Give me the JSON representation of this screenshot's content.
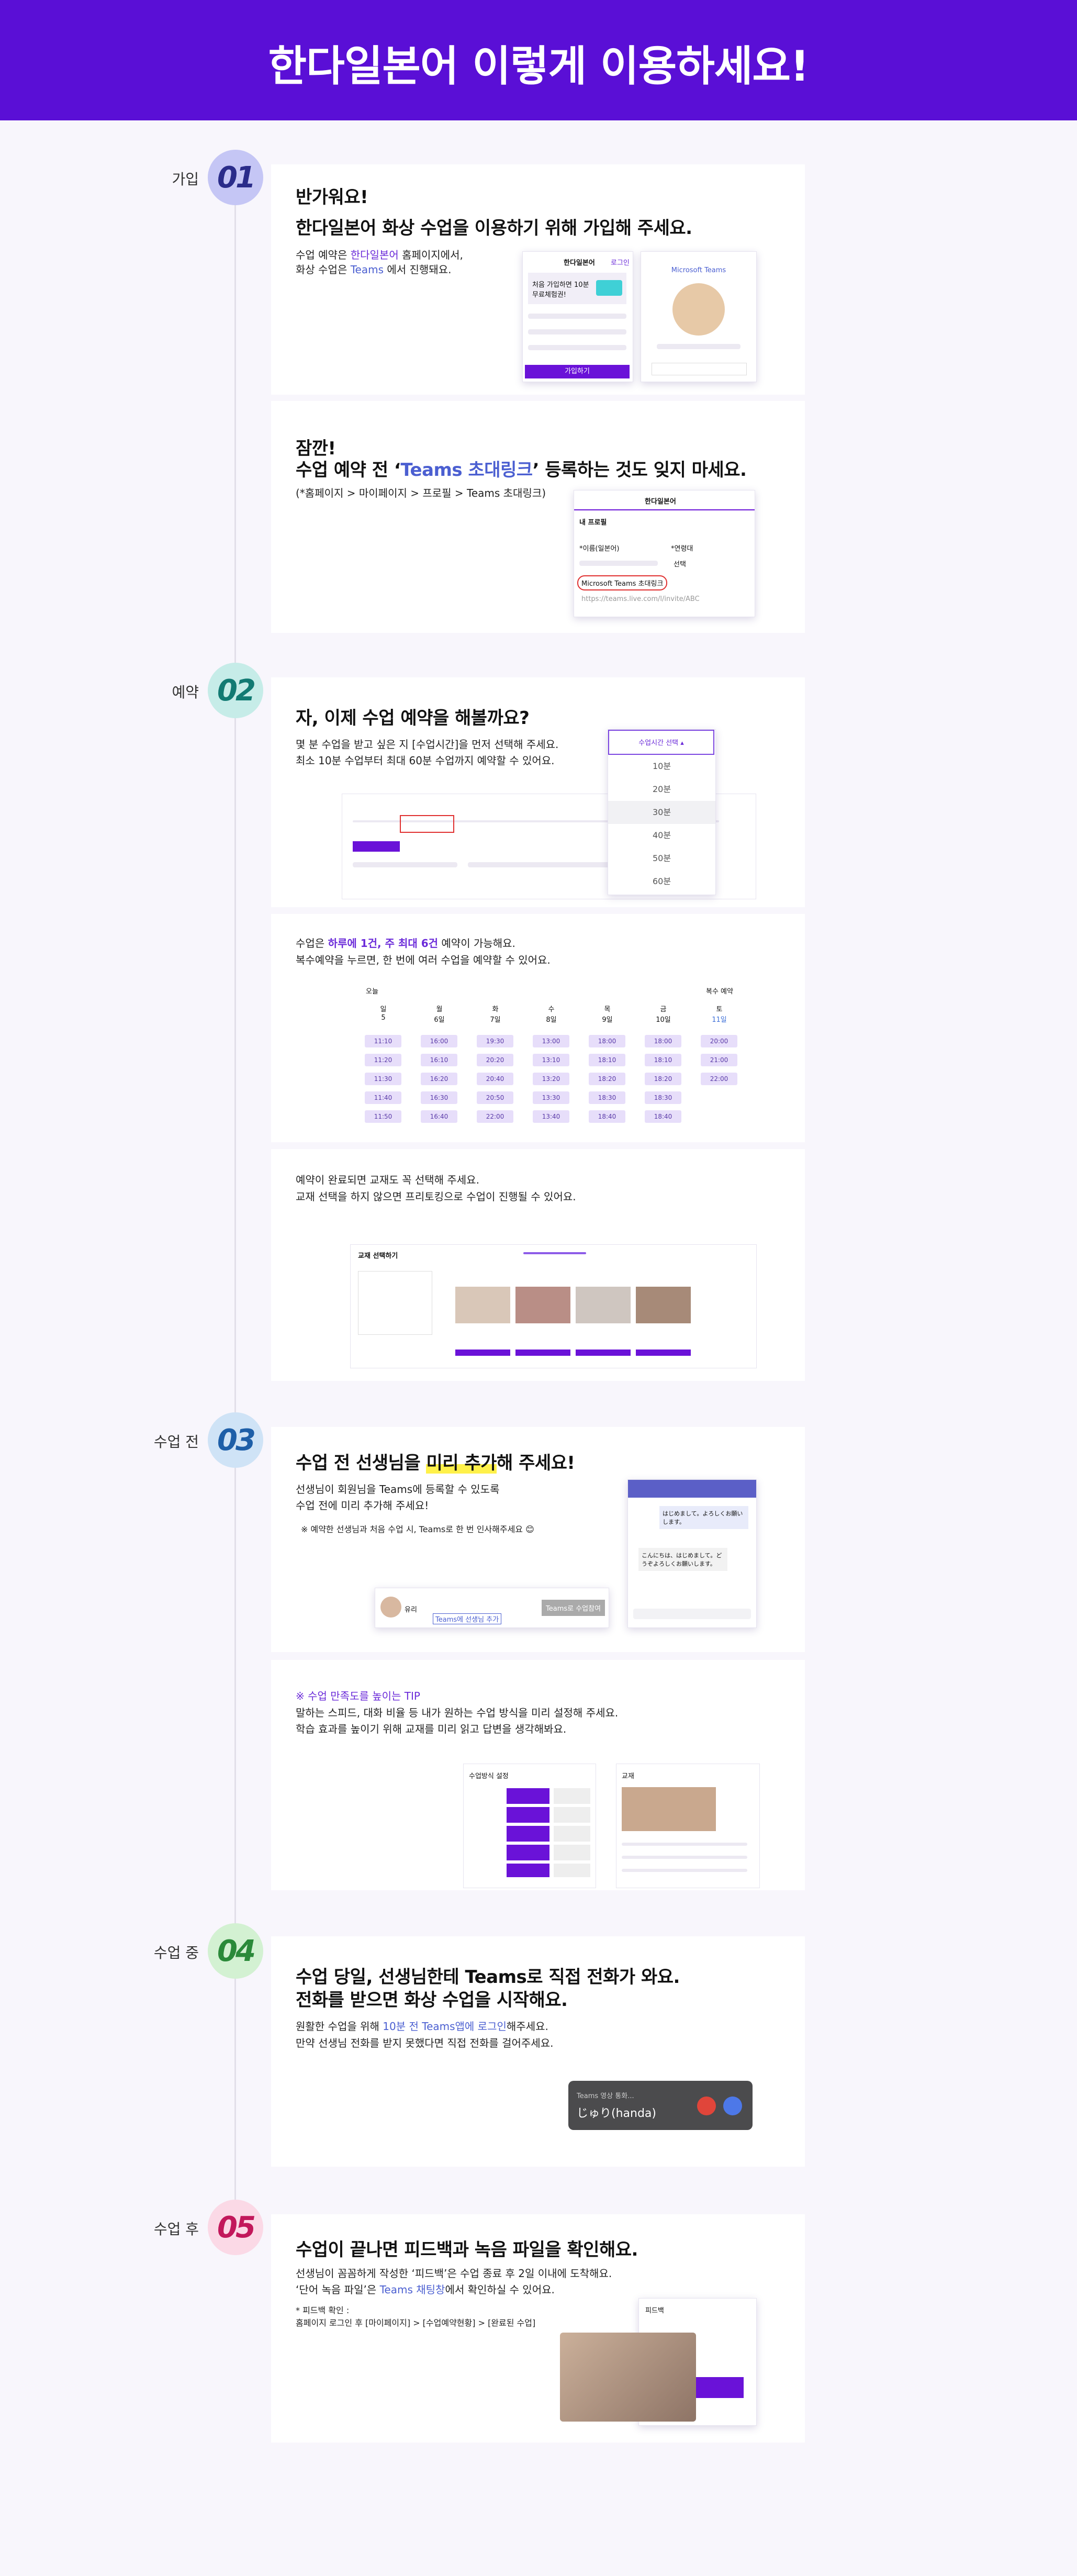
{
  "header": {
    "title": "한다일본어 이렇게 이용하세요!"
  },
  "steps": [
    {
      "label": "가입",
      "number": "01"
    },
    {
      "label": "예약",
      "number": "02"
    },
    {
      "label": "수업 전",
      "number": "03"
    },
    {
      "label": "수업 중",
      "number": "04"
    },
    {
      "label": "수업 후",
      "number": "05"
    }
  ],
  "signup": {
    "heading": [
      "반가워요!",
      "한다일본어 화상 수업을 이용하기 위해 가입해 주세요."
    ],
    "line1": [
      "수업 예약은 ",
      "한다일본어",
      " 홈페이지에서,"
    ],
    "line2": [
      "화상 수업은 ",
      "Teams",
      " 에서 진행돼요."
    ],
    "mock": {
      "logo": "한다일본어",
      "login": "로그인",
      "banner": "처음 가입하면 10분 무료체험권!",
      "button": "가입하기",
      "teams": "Microsoft Teams"
    }
  },
  "invite": {
    "heading1": "잠깐!",
    "heading2": [
      "수업 예약 전 ‘",
      "Teams 초대링크",
      "’ 등록하는 것도 잊지 마세요."
    ],
    "path": "(*홈페이지 > 마이페이지 > 프로필 > Teams 초대링크)",
    "mock": {
      "logo": "한다일본어",
      "tab": "내 프로필",
      "name": "*이름(일본어)",
      "age": "*연령대",
      "select": "선택",
      "link": "Microsoft Teams 초대링크",
      "url": "https://teams.live.com/l/invite/ABC"
    }
  },
  "booking": {
    "heading": "자, 이제 수업 예약을 해볼까요?",
    "lines": [
      "몇 분 수업을 받고 싶은 지 [수업시간]을 먼저 선택해 주세요.",
      "최소 10분 수업부터 최대 60분 수업까지 예약할 수 있어요."
    ],
    "dropdown": "수업시간 선택 ▴",
    "options": [
      "10분",
      "20분",
      "30분",
      "40분",
      "50분",
      "60분"
    ]
  },
  "schedule": {
    "line1": [
      "수업은 ",
      "하루에 1건, 주 최대 6건",
      " 예약이 가능해요."
    ],
    "line2": "복수예약을 누르면, 한 번에 여러 수업을 예약할 수 있어요.",
    "today": "오늘",
    "multi": "복수 예약",
    "days": [
      {
        "day": "일",
        "date": "5"
      },
      {
        "day": "월",
        "date": "6일"
      },
      {
        "day": "화",
        "date": "7일"
      },
      {
        "day": "수",
        "date": "8일"
      },
      {
        "day": "목",
        "date": "9일"
      },
      {
        "day": "금",
        "date": "10일"
      },
      {
        "day": "토",
        "date": "11일"
      }
    ],
    "times": [
      [
        "11:10",
        "11:20",
        "11:30",
        "11:40",
        "11:50"
      ],
      [
        "16:00",
        "16:10",
        "16:20",
        "16:30",
        "16:40"
      ],
      [
        "19:30",
        "20:20",
        "20:40",
        "20:50",
        "22:00"
      ],
      [
        "13:00",
        "13:10",
        "13:20",
        "13:30",
        "13:40"
      ],
      [
        "18:00",
        "18:10",
        "18:20",
        "18:30",
        "18:40"
      ],
      [
        "18:00",
        "18:10",
        "18:20",
        "18:30",
        "18:40"
      ],
      [
        "20:00",
        "21:00",
        "22:00"
      ]
    ]
  },
  "textbook": {
    "lines": [
      "예약이 완료되면 교재도 꼭 선택해 주세요.",
      "교재 선택을 하지 않으면 프리토킹으로 수업이 진행될 수 있어요."
    ],
    "mock": {
      "title": "교재 선택하기"
    }
  },
  "prepare": {
    "heading": [
      "수업 전 선생님을 ",
      "미리 추가",
      "해 주세요!"
    ],
    "lines": [
      "선생님이 회원님을 Teams에 등록할 수 있도록",
      "수업 전에 미리 추가해 주세요!"
    ],
    "note": "※ 예약한 선생님과 처음 수업 시, Teams로 한 번 인사해주세요 😊",
    "mock": {
      "name": "유리",
      "add": "Teams에 선생님 추가",
      "join": "Teams로 수업참여",
      "chat1": "はじめまして。よろしくお願いします。",
      "chat2": "こんにちは、はじめまして。どうぞよろしくお願いします。"
    }
  },
  "tip": {
    "title": "※ 수업 만족도를 높이는 TIP",
    "lines": [
      "말하는 스피드, 대화 비율 등 내가 원하는 수업 방식을 미리 설정해 주세요.",
      "학습 효과를 높이기 위해 교재를 미리 읽고 답변을 생각해봐요."
    ],
    "mock": {
      "settings": "수업방식 설정",
      "textbook": "교재"
    }
  },
  "call": {
    "heading": [
      "수업 당일, 선생님한테 Teams로 직접 전화가 와요.",
      "전화를 받으면 화상 수업을 시작해요."
    ],
    "line1": [
      "원활한 수업을 위해 ",
      "10분 전 Teams앱에 로그인",
      "해주세요."
    ],
    "line2": "만약 선생님 전화를 받지 못했다면 직접 전화를 걸어주세요.",
    "mock": {
      "status": "Teams 영상 통화...",
      "caller": "じゅり(handa)"
    }
  },
  "feedback": {
    "heading": "수업이 끝나면 피드백과 녹음 파일을 확인해요.",
    "line1": "선생님이 꼼꼼하게 작성한 ‘피드백’은 수업 종료 후 2일 이내에 도착해요.",
    "line2": [
      "‘단어 녹음 파일’은 ",
      "Teams 채팅창",
      "에서 확인하실 수 있어요."
    ],
    "note": [
      "* 피드백 확인 :",
      "홈페이지 로그인 후 [마이페이지] > [수업예약현황] > [완료된 수업]"
    ],
    "mock": {
      "title": "피드백"
    }
  }
}
